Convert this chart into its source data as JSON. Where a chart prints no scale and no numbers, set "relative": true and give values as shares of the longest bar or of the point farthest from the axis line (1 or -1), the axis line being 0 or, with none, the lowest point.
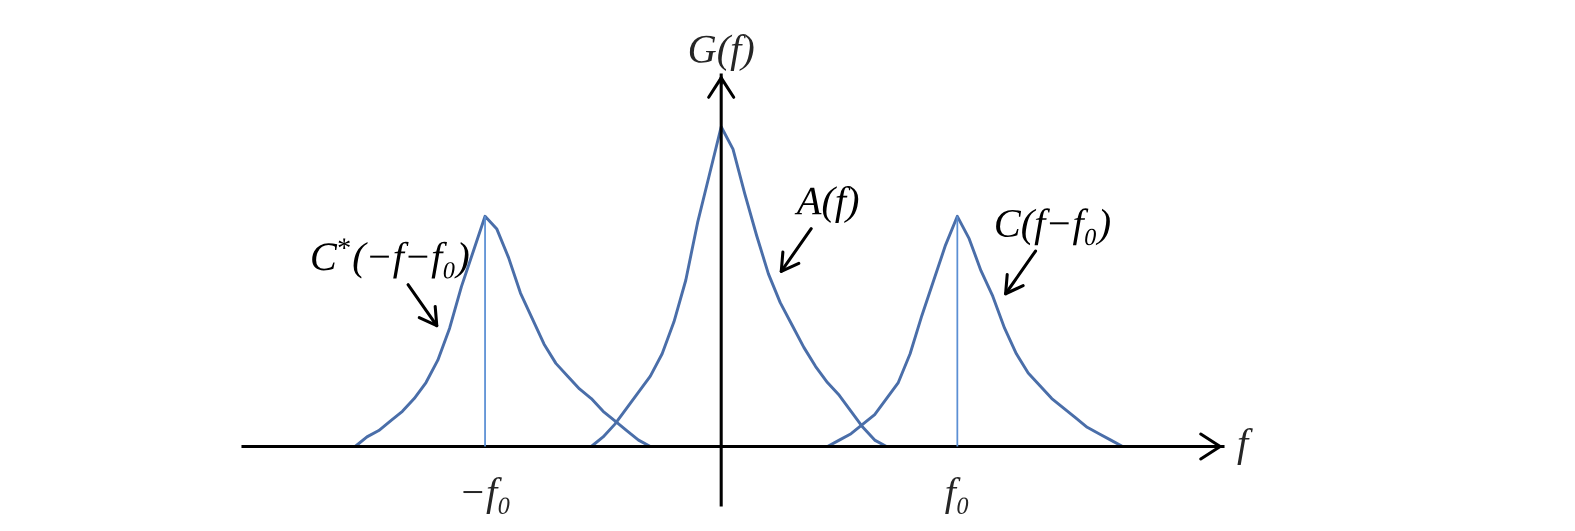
{
  "chart_data": {
    "type": "line",
    "relative": true,
    "xlabel": "f",
    "ylabel": "G(f)",
    "tick_labels": "x",
    "categories": [
      null,
      null,
      null,
      null,
      null,
      null,
      null,
      null,
      null,
      null,
      null,
      null,
      null,
      null,
      null,
      null,
      null,
      null,
      null,
      null,
      "−f₀",
      null,
      null,
      null,
      null,
      null,
      null,
      null,
      null,
      null,
      null,
      null,
      null,
      null,
      null,
      null,
      null,
      null,
      null,
      null,
      null,
      null,
      null,
      null,
      null,
      null,
      null,
      null,
      null,
      null,
      null,
      null,
      null,
      null,
      null,
      null,
      null,
      null,
      null,
      null,
      "f₀",
      null,
      null,
      null,
      null,
      null,
      null,
      null,
      null,
      null,
      null,
      null,
      null,
      null,
      null,
      null,
      null,
      null,
      null,
      null,
      null,
      null,
      null
    ],
    "series": [
      {
        "name": "C$^{*}$(−f−f₀)",
        "color": "#4a6ea9",
        "values": [
          null,
          null,
          null,
          null,
          null,
          null,
          null,
          null,
          null,
          0.0,
          0.03,
          0.05,
          0.08,
          0.11,
          0.15,
          0.2,
          0.27,
          0.37,
          0.5,
          0.61,
          0.72,
          0.68,
          0.59,
          0.48,
          0.4,
          0.32,
          0.26,
          0.22,
          0.18,
          0.15,
          0.11,
          0.08,
          0.05,
          0.02,
          0.0,
          null,
          null,
          null,
          null,
          null,
          null,
          null,
          null,
          null,
          null,
          null,
          null,
          null,
          null,
          null,
          null,
          null,
          null,
          null,
          null,
          null,
          null,
          null,
          null,
          null,
          null,
          null,
          null,
          null,
          null,
          null,
          null,
          null,
          null,
          null,
          null,
          null,
          null,
          null,
          null,
          null,
          null,
          null,
          null,
          null,
          null,
          null,
          null
        ]
      },
      {
        "name": "A(f)",
        "color": "#4a6ea9",
        "values": [
          null,
          null,
          null,
          null,
          null,
          null,
          null,
          null,
          null,
          null,
          null,
          null,
          null,
          null,
          null,
          null,
          null,
          null,
          null,
          null,
          null,
          null,
          null,
          null,
          null,
          null,
          null,
          null,
          null,
          0.0,
          0.03,
          0.07,
          0.12,
          0.17,
          0.22,
          0.29,
          0.39,
          0.52,
          0.7,
          0.85,
          1.0,
          0.93,
          0.79,
          0.66,
          0.54,
          0.45,
          0.38,
          0.31,
          0.25,
          0.2,
          0.16,
          0.11,
          0.06,
          0.02,
          0.0,
          null,
          null,
          null,
          null,
          null,
          null,
          null,
          null,
          null,
          null,
          null,
          null,
          null,
          null,
          null,
          null,
          null,
          null,
          null,
          null,
          null,
          null,
          null,
          null,
          null,
          null,
          null,
          null
        ]
      },
      {
        "name": "C(f−f₀)",
        "color": "#4a6ea9",
        "values": [
          null,
          null,
          null,
          null,
          null,
          null,
          null,
          null,
          null,
          null,
          null,
          null,
          null,
          null,
          null,
          null,
          null,
          null,
          null,
          null,
          null,
          null,
          null,
          null,
          null,
          null,
          null,
          null,
          null,
          null,
          null,
          null,
          null,
          null,
          null,
          null,
          null,
          null,
          null,
          null,
          null,
          null,
          null,
          null,
          null,
          null,
          null,
          null,
          null,
          0.0,
          0.02,
          0.04,
          0.07,
          0.1,
          0.15,
          0.2,
          0.29,
          0.41,
          0.52,
          0.63,
          0.72,
          0.65,
          0.55,
          0.47,
          0.37,
          0.29,
          0.23,
          0.19,
          0.15,
          0.12,
          0.09,
          0.06,
          0.04,
          0.02,
          0.0,
          null,
          null,
          null,
          null,
          null,
          null,
          null,
          null
        ]
      },
      {
        "type": "bar",
        "color": "#5b8fd4",
        "values": [
          null,
          null,
          null,
          null,
          null,
          null,
          null,
          null,
          null,
          null,
          null,
          null,
          null,
          null,
          null,
          null,
          null,
          null,
          null,
          null,
          0.72,
          null,
          null,
          null,
          null,
          null,
          null,
          null,
          null,
          null,
          null,
          null,
          null,
          null,
          null,
          null,
          null,
          null,
          null,
          null,
          null,
          null,
          null,
          null,
          null,
          null,
          null,
          null,
          null,
          null,
          null,
          null,
          null,
          null,
          null,
          null,
          null,
          null,
          null,
          null,
          0.72,
          null,
          null,
          null,
          null,
          null,
          null,
          null,
          null,
          null,
          null,
          null,
          null,
          null,
          null,
          null,
          null,
          null,
          null,
          null,
          null,
          null,
          null
        ]
      }
    ]
  }
}
